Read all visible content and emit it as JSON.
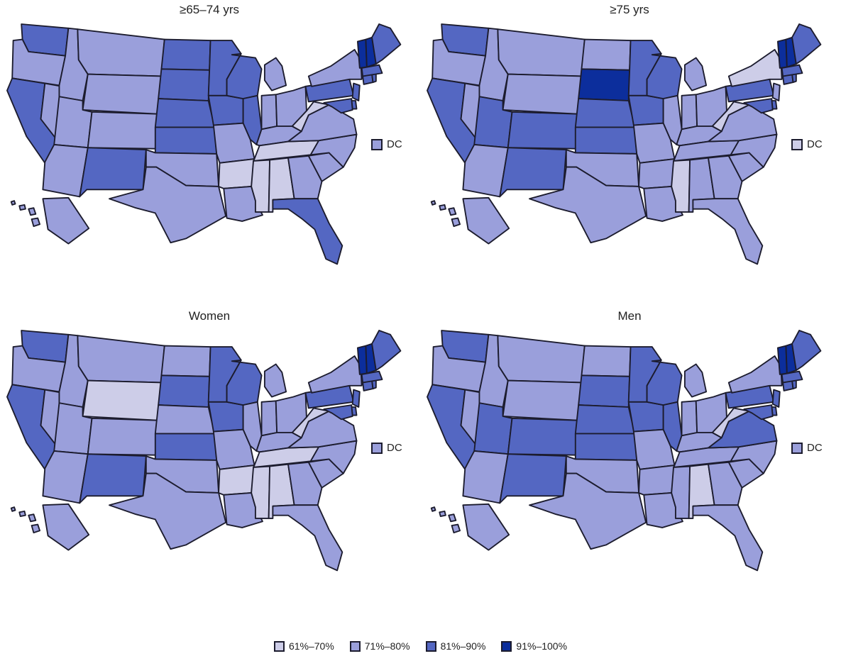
{
  "colors": {
    "c61_70": "#cdcde8",
    "c71_80": "#9a9fdb",
    "c81_90": "#5467c2",
    "c91_100": "#0c2e9c",
    "border": "#1c1c2e"
  },
  "panels": [
    {
      "title": "≥65–74 yrs",
      "dc_label": "DC",
      "dc_bin": "c71_80",
      "states": {
        "WA": "c81_90",
        "OR": "c71_80",
        "CA": "c81_90",
        "NV": "c71_80",
        "ID": "c71_80",
        "MT": "c71_80",
        "WY": "c71_80",
        "UT": "c71_80",
        "AZ": "c71_80",
        "CO": "c71_80",
        "NM": "c81_90",
        "ND": "c81_90",
        "SD": "c81_90",
        "NE": "c81_90",
        "KS": "c81_90",
        "OK": "c71_80",
        "TX": "c71_80",
        "MN": "c81_90",
        "IA": "c81_90",
        "MO": "c71_80",
        "AR": "c61_70",
        "LA": "c71_80",
        "WI": "c81_90",
        "IL": "c81_90",
        "MI": "c71_80",
        "IN": "c71_80",
        "OH": "c71_80",
        "KY": "c71_80",
        "TN": "c61_70",
        "MS": "c61_70",
        "AL": "c61_70",
        "GA": "c71_80",
        "FL": "c81_90",
        "SC": "c71_80",
        "NC": "c71_80",
        "VA": "c71_80",
        "WV": "c61_70",
        "PA": "c81_90",
        "NY": "c71_80",
        "NJ": "c81_90",
        "DE": "c81_90",
        "MD": "c81_90",
        "CT": "c81_90",
        "RI": "c81_90",
        "MA": "c81_90",
        "VT": "c91_100",
        "NH": "c91_100",
        "ME": "c81_90",
        "AK": "c71_80",
        "HI": "c71_80"
      }
    },
    {
      "title": "≥75 yrs",
      "dc_label": "DC",
      "dc_bin": "c61_70",
      "states": {
        "WA": "c81_90",
        "OR": "c71_80",
        "CA": "c81_90",
        "NV": "c71_80",
        "ID": "c71_80",
        "MT": "c71_80",
        "WY": "c71_80",
        "UT": "c81_90",
        "AZ": "c71_80",
        "CO": "c81_90",
        "NM": "c81_90",
        "ND": "c71_80",
        "SD": "c91_100",
        "NE": "c81_90",
        "KS": "c81_90",
        "OK": "c71_80",
        "TX": "c71_80",
        "MN": "c81_90",
        "IA": "c81_90",
        "MO": "c71_80",
        "AR": "c71_80",
        "LA": "c71_80",
        "WI": "c81_90",
        "IL": "c71_80",
        "MI": "c71_80",
        "IN": "c71_80",
        "OH": "c71_80",
        "KY": "c71_80",
        "TN": "c71_80",
        "MS": "c61_70",
        "AL": "c71_80",
        "GA": "c71_80",
        "FL": "c71_80",
        "SC": "c71_80",
        "NC": "c71_80",
        "VA": "c71_80",
        "WV": "c61_70",
        "PA": "c81_90",
        "NY": "c61_70",
        "NJ": "c71_80",
        "DE": "c81_90",
        "MD": "c81_90",
        "CT": "c81_90",
        "RI": "c81_90",
        "MA": "c81_90",
        "VT": "c91_100",
        "NH": "c91_100",
        "ME": "c81_90",
        "AK": "c71_80",
        "HI": "c71_80"
      }
    },
    {
      "title": "Women",
      "dc_label": "DC",
      "dc_bin": "c71_80",
      "states": {
        "WA": "c81_90",
        "OR": "c71_80",
        "CA": "c81_90",
        "NV": "c71_80",
        "ID": "c71_80",
        "MT": "c71_80",
        "WY": "c61_70",
        "UT": "c71_80",
        "AZ": "c71_80",
        "CO": "c71_80",
        "NM": "c81_90",
        "ND": "c71_80",
        "SD": "c81_90",
        "NE": "c71_80",
        "KS": "c81_90",
        "OK": "c71_80",
        "TX": "c71_80",
        "MN": "c81_90",
        "IA": "c81_90",
        "MO": "c71_80",
        "AR": "c61_70",
        "LA": "c71_80",
        "WI": "c81_90",
        "IL": "c71_80",
        "MI": "c71_80",
        "IN": "c71_80",
        "OH": "c71_80",
        "KY": "c71_80",
        "TN": "c61_70",
        "MS": "c61_70",
        "AL": "c61_70",
        "GA": "c71_80",
        "FL": "c71_80",
        "SC": "c71_80",
        "NC": "c71_80",
        "VA": "c71_80",
        "WV": "c61_70",
        "PA": "c81_90",
        "NY": "c71_80",
        "NJ": "c81_90",
        "DE": "c81_90",
        "MD": "c81_90",
        "CT": "c81_90",
        "RI": "c81_90",
        "MA": "c81_90",
        "VT": "c91_100",
        "NH": "c91_100",
        "ME": "c81_90",
        "AK": "c71_80",
        "HI": "c71_80"
      }
    },
    {
      "title": "Men",
      "dc_label": "DC",
      "dc_bin": "c71_80",
      "states": {
        "WA": "c81_90",
        "OR": "c71_80",
        "CA": "c81_90",
        "NV": "c71_80",
        "ID": "c71_80",
        "MT": "c71_80",
        "WY": "c71_80",
        "UT": "c81_90",
        "AZ": "c71_80",
        "CO": "c81_90",
        "NM": "c81_90",
        "ND": "c71_80",
        "SD": "c81_90",
        "NE": "c81_90",
        "KS": "c81_90",
        "OK": "c71_80",
        "TX": "c71_80",
        "MN": "c81_90",
        "IA": "c81_90",
        "MO": "c71_80",
        "AR": "c71_80",
        "LA": "c71_80",
        "WI": "c81_90",
        "IL": "c81_90",
        "MI": "c71_80",
        "IN": "c71_80",
        "OH": "c71_80",
        "KY": "c71_80",
        "TN": "c71_80",
        "MS": "c71_80",
        "AL": "c61_70",
        "GA": "c71_80",
        "FL": "c71_80",
        "SC": "c71_80",
        "NC": "c71_80",
        "VA": "c81_90",
        "WV": "c61_70",
        "PA": "c81_90",
        "NY": "c71_80",
        "NJ": "c81_90",
        "DE": "c81_90",
        "MD": "c81_90",
        "CT": "c81_90",
        "RI": "c81_90",
        "MA": "c81_90",
        "VT": "c91_100",
        "NH": "c91_100",
        "ME": "c81_90",
        "AK": "c71_80",
        "HI": "c71_80"
      }
    }
  ],
  "legend": [
    {
      "label": "61%–70%",
      "bin": "c61_70"
    },
    {
      "label": "71%–80%",
      "bin": "c71_80"
    },
    {
      "label": "81%–90%",
      "bin": "c81_90"
    },
    {
      "label": "91%–100%",
      "bin": "c91_100"
    }
  ]
}
